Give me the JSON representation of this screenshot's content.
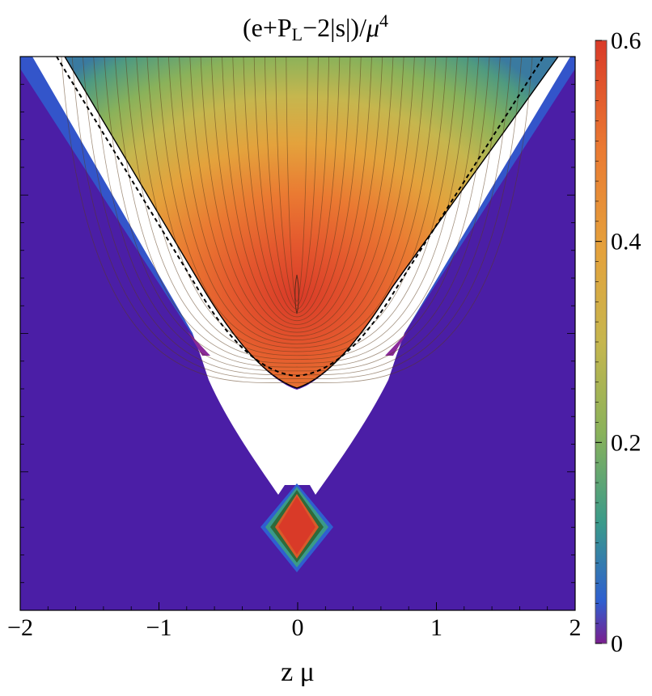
{
  "chart_data": {
    "type": "heatmap",
    "title_parts": {
      "base": "(e+P",
      "sub": "L",
      "mid": "−2|s|)/",
      "greek": "μ",
      "sup": "4"
    },
    "xlabel": "z μ",
    "ylabel": "",
    "xlim": [
      -2,
      2
    ],
    "x_ticks": [
      -2,
      -1,
      0,
      1,
      2
    ],
    "x_tick_labels": [
      "−2",
      "−1",
      "0",
      "1",
      "2"
    ],
    "colorbar": {
      "range": [
        0,
        0.6
      ],
      "ticks": [
        0,
        0.2,
        0.4,
        0.6
      ],
      "tick_labels": [
        "0",
        "0.2",
        "0.4",
        "0.6"
      ],
      "colors": [
        "#7a1e8e",
        "#2f5fd0",
        "#3a9a8a",
        "#8ab25a",
        "#c6b64e",
        "#e4a23c",
        "#ea7a32",
        "#d93a28"
      ]
    },
    "regions": {
      "background_color": "#4b1ea6",
      "upper_cone_vertex_x": 0,
      "upper_cone_max_value": 0.55,
      "lower_diamond_x": 0,
      "lower_diamond_max_value": 0.6,
      "contour_levels": 22,
      "dashed_boundary": true
    }
  }
}
